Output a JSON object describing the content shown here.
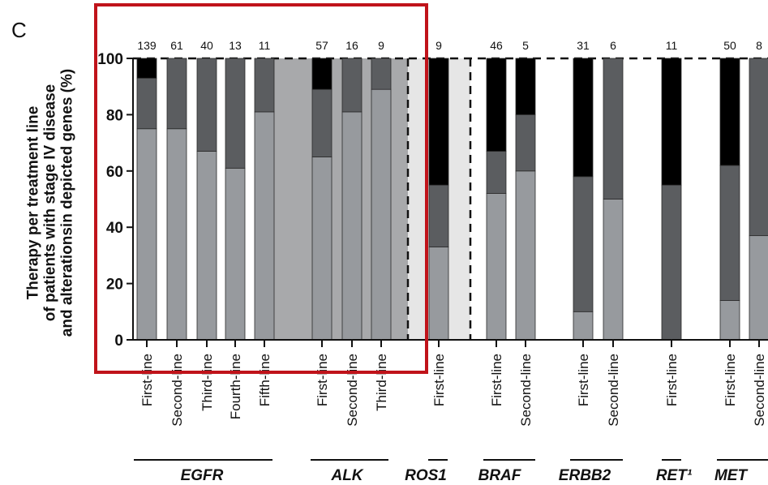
{
  "panel_label": "C",
  "colors": {
    "first_segment": "#979a9e",
    "second_segment": "#5b5d60",
    "third_segment": "#000000",
    "shade_dark": "#a8a9ab",
    "shade_light": "#e6e6e6",
    "highlight_box": "#c0131a"
  },
  "chart_data": {
    "type": "bar",
    "stacked": true,
    "ylabel_lines": [
      "Therapy per treatment line",
      "of patients with stage IV disease",
      "and alterationsin depicted genes (%)"
    ],
    "ylim": [
      0,
      100
    ],
    "yticks": [
      0,
      20,
      40,
      60,
      80,
      100
    ],
    "grid": false,
    "legend": "none",
    "groups": [
      {
        "gene": "EGFR",
        "bars": [
          {
            "line": "First-line",
            "n": "139",
            "segments": [
              75,
              18,
              7
            ]
          },
          {
            "line": "Second-line",
            "n": "61",
            "segments": [
              75,
              25,
              0
            ]
          },
          {
            "line": "Third-line",
            "n": "40",
            "segments": [
              67,
              33,
              0
            ]
          },
          {
            "line": "Fourth-line",
            "n": "13",
            "segments": [
              61,
              39,
              0
            ]
          },
          {
            "line": "Fifth-line",
            "n": "11",
            "segments": [
              81,
              19,
              0
            ]
          }
        ]
      },
      {
        "gene": "ALK",
        "bars": [
          {
            "line": "First-line",
            "n": "57",
            "segments": [
              65,
              24,
              11
            ]
          },
          {
            "line": "Second-line",
            "n": "16",
            "segments": [
              81,
              19,
              0
            ]
          },
          {
            "line": "Third-line",
            "n": "9",
            "segments": [
              89,
              11,
              0
            ]
          }
        ]
      },
      {
        "gene": "ROS1",
        "bars": [
          {
            "line": "First-line",
            "n": "9",
            "segments": [
              33,
              22,
              45
            ]
          }
        ]
      },
      {
        "gene": "BRAF",
        "bars": [
          {
            "line": "First-line",
            "n": "46",
            "segments": [
              52,
              15,
              33
            ]
          },
          {
            "line": "Second-line",
            "n": "5",
            "segments": [
              60,
              20,
              20
            ]
          }
        ]
      },
      {
        "gene": "ERBB2",
        "bars": [
          {
            "line": "First-line",
            "n": "31",
            "segments": [
              10,
              48,
              42
            ]
          },
          {
            "line": "Second-line",
            "n": "6",
            "segments": [
              50,
              50,
              0
            ]
          }
        ]
      },
      {
        "gene": "RET¹",
        "bars": [
          {
            "line": "First-line",
            "n": "11",
            "segments": [
              0,
              55,
              45
            ]
          }
        ]
      },
      {
        "gene": "MET",
        "bars": [
          {
            "line": "First-line",
            "n": "50",
            "segments": [
              14,
              48,
              38
            ]
          },
          {
            "line": "Second-line",
            "n": "8",
            "segments": [
              37,
              63,
              0
            ]
          }
        ]
      }
    ]
  }
}
